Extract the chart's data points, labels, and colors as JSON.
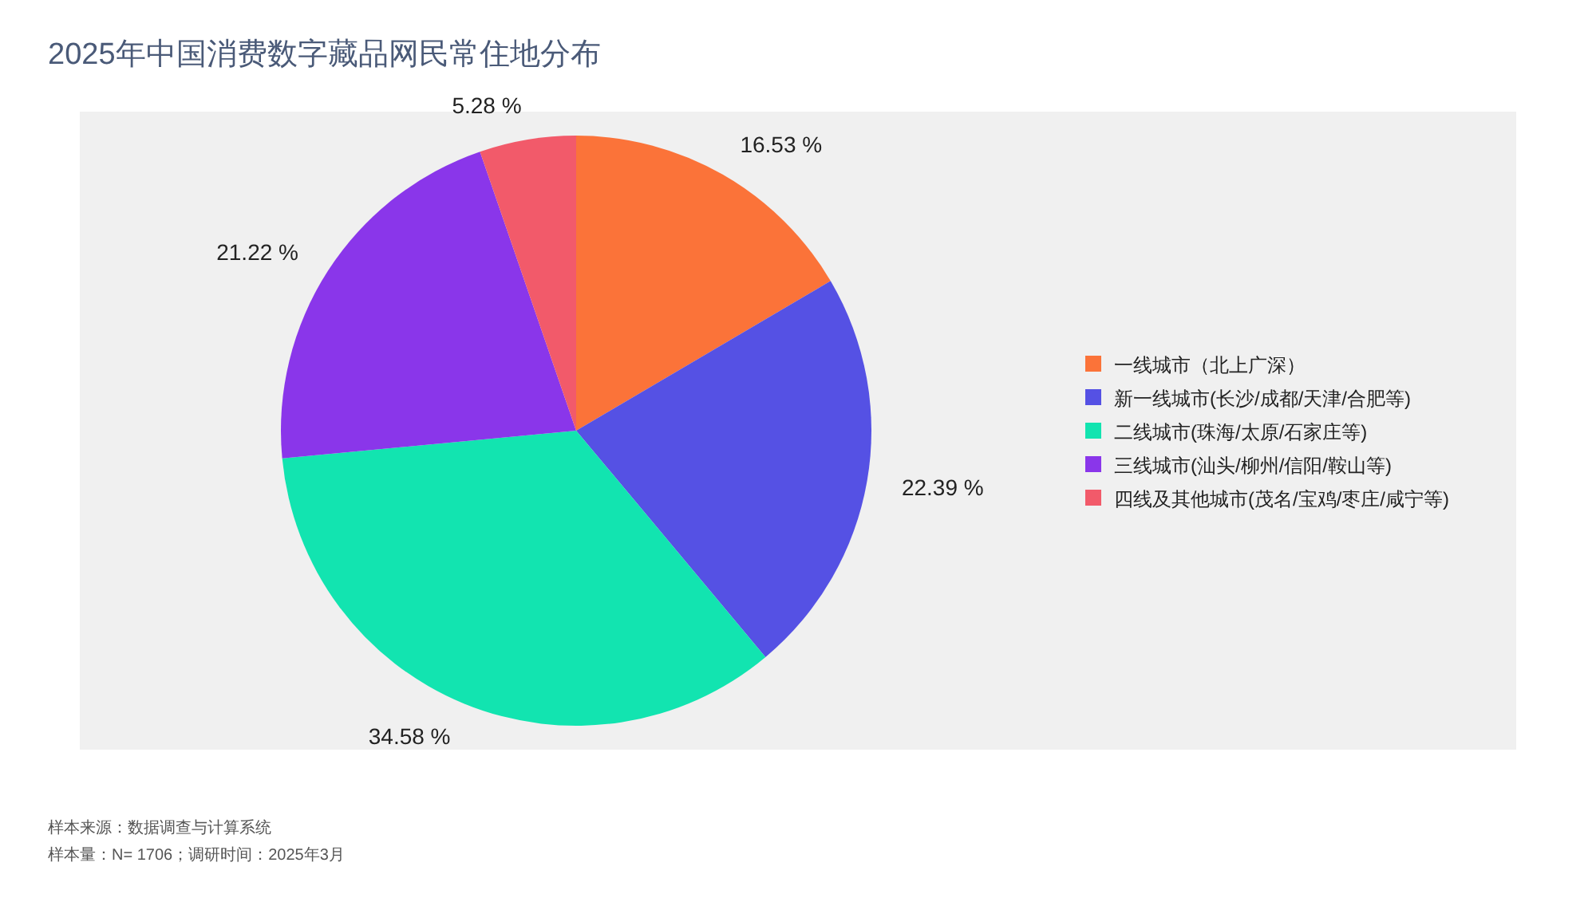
{
  "chart_data": {
    "type": "pie",
    "title": "2025年中国消费数字藏品网民常住地分布",
    "categories": [
      "一线城市（北上广深）",
      "新一线城市(长沙/成都/天津/合肥等)",
      "二线城市(珠海/太原/石家庄等)",
      "三线城市(汕头/柳州/信阳/鞍山等)",
      "四线及其他城市(茂名/宝鸡/枣庄/咸宁等)"
    ],
    "values": [
      16.53,
      22.39,
      34.58,
      21.22,
      5.28
    ],
    "value_labels": [
      "16.53 %",
      "22.39 %",
      "34.58 %",
      "21.22 %",
      "5.28 %"
    ],
    "colors": [
      "#fb7339",
      "#5551e4",
      "#12e4b0",
      "#8a36ea",
      "#f25a6a"
    ],
    "legend": "right",
    "annotations": [
      "样本来源：数据调查与计算系统",
      "样本量：N= 1706；调研时间：2025年3月"
    ]
  }
}
